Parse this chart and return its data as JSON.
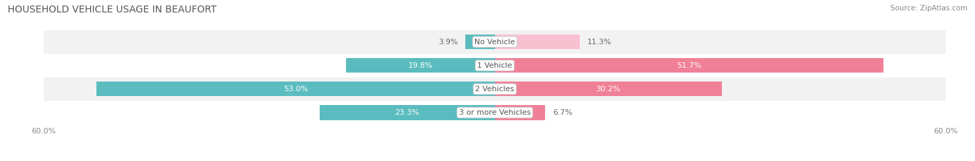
{
  "title": "HOUSEHOLD VEHICLE USAGE IN BEAUFORT",
  "source": "Source: ZipAtlas.com",
  "categories": [
    "No Vehicle",
    "1 Vehicle",
    "2 Vehicles",
    "3 or more Vehicles"
  ],
  "owner_values": [
    3.9,
    19.8,
    53.0,
    23.3
  ],
  "renter_values": [
    11.3,
    51.7,
    30.2,
    6.7
  ],
  "owner_color": "#5bbcbf",
  "renter_color": "#f08098",
  "renter_color_light": "#f8c0d0",
  "axis_max": 60.0,
  "bar_height": 0.62,
  "row_bg_colors": [
    "#f2f2f2",
    "#ffffff",
    "#f2f2f2",
    "#ffffff"
  ],
  "title_fontsize": 10,
  "label_fontsize": 8,
  "category_fontsize": 8,
  "legend_fontsize": 8,
  "axis_label_fontsize": 8,
  "background_color": "#ffffff"
}
